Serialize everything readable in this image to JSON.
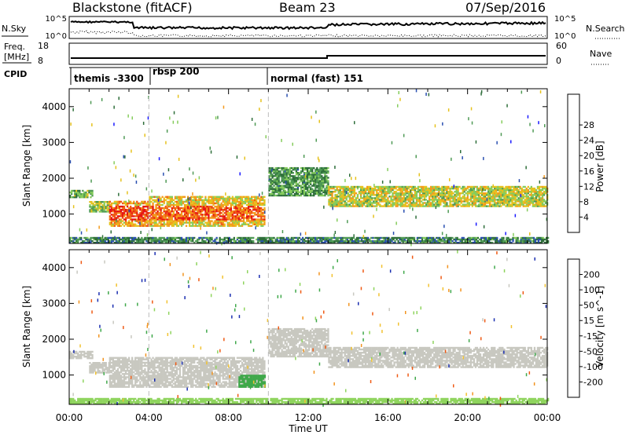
{
  "header": {
    "station": "Blackstone (fitACF)",
    "beam": "Beam 23",
    "date": "07/Sep/2016"
  },
  "top_panels": {
    "nsky_label": "N.Sky",
    "nsearch_label": "N.Search",
    "nsky_ticks": [
      "10^5",
      "10^0"
    ],
    "nsearch_ticks": [
      "10^5",
      "10^0"
    ],
    "freq_label_1": "Freq.",
    "freq_label_2": "[MHz]",
    "freq_ticks": [
      "18",
      "8"
    ],
    "nave_label": "Nave",
    "nave_ticks": [
      "60",
      "0"
    ],
    "cpid_label": "CPID",
    "cpid_segments": [
      {
        "label": "themis -3300",
        "start_hour": 0
      },
      {
        "label": "rbsp 200",
        "start_hour": 4
      },
      {
        "label": "normal (fast) 151",
        "start_hour": 10
      }
    ]
  },
  "chart_data": [
    {
      "type": "heatmap",
      "title": "Power",
      "ylabel": "Slant Range [km]",
      "xlabel": "Time UT",
      "x_ticks": [
        "00:00",
        "04:00",
        "08:00",
        "12:00",
        "16:00",
        "20:00",
        "00:00"
      ],
      "x_range_hours": [
        0,
        24
      ],
      "y_ticks": [
        1000,
        2000,
        3000,
        4000
      ],
      "ylim": [
        180,
        4500
      ],
      "colorbar": {
        "label": "Power [dB]",
        "ticks": [
          "4",
          "8",
          "12",
          "16",
          "20",
          "24",
          "28"
        ],
        "colors": [
          "#1a1aff",
          "#2a4fb0",
          "#2e6e3a",
          "#4f9a55",
          "#86cc5c",
          "#e6c21e",
          "#f49a1c",
          "#ef5a14",
          "#e61414"
        ]
      },
      "bands": [
        {
          "t0": 0.0,
          "t1": 1.2,
          "r0": 1450,
          "r1": 1650,
          "level": 12
        },
        {
          "t0": 1.0,
          "t1": 2.0,
          "r0": 1050,
          "r1": 1350,
          "level": 14
        },
        {
          "t0": 2.0,
          "t1": 4.0,
          "r0": 650,
          "r1": 1350,
          "level": 20
        },
        {
          "t0": 4.0,
          "t1": 9.8,
          "r0": 650,
          "r1": 1500,
          "level": 18
        },
        {
          "t0": 10.0,
          "t1": 13.0,
          "r0": 1500,
          "r1": 2300,
          "level": 10
        },
        {
          "t0": 13.0,
          "t1": 24.0,
          "r0": 1200,
          "r1": 1750,
          "level": 16
        },
        {
          "t0": 0.0,
          "t1": 24.0,
          "r0": 180,
          "r1": 320,
          "level": 8
        }
      ]
    },
    {
      "type": "heatmap",
      "title": "Velocity",
      "ylabel": "Slant Range [km]",
      "xlabel": "Time UT",
      "x_ticks": [
        "00:00",
        "04:00",
        "08:00",
        "12:00",
        "16:00",
        "20:00",
        "00:00"
      ],
      "x_range_hours": [
        0,
        24
      ],
      "y_ticks": [
        1000,
        2000,
        3000,
        4000
      ],
      "ylim": [
        180,
        4500
      ],
      "colorbar": {
        "label": "Velocity [m s^-1]",
        "ticks": [
          "200",
          "100",
          "50",
          "15",
          "-15",
          "-50",
          "-100",
          "-200"
        ],
        "colors": [
          "#1a2eb0",
          "#2e6e3a",
          "#3fa84a",
          "#8fd45e",
          "#c8c8c0",
          "#f2c230",
          "#f29420",
          "#ef5a14",
          "#e61414"
        ]
      },
      "bands": [
        {
          "t0": 0.0,
          "t1": 1.2,
          "r0": 1450,
          "r1": 1650,
          "level": 0
        },
        {
          "t0": 1.0,
          "t1": 2.0,
          "r0": 1050,
          "r1": 1350,
          "level": 5
        },
        {
          "t0": 2.0,
          "t1": 9.8,
          "r0": 650,
          "r1": 1500,
          "level": 0
        },
        {
          "t0": 8.5,
          "t1": 9.8,
          "r0": 650,
          "r1": 1000,
          "level": 60
        },
        {
          "t0": 10.0,
          "t1": 13.0,
          "r0": 1500,
          "r1": 2300,
          "level": 0
        },
        {
          "t0": 13.0,
          "t1": 24.0,
          "r0": 1200,
          "r1": 1750,
          "level": 0
        },
        {
          "t0": 0.0,
          "t1": 24.0,
          "r0": 180,
          "r1": 320,
          "level": 30
        }
      ]
    }
  ]
}
